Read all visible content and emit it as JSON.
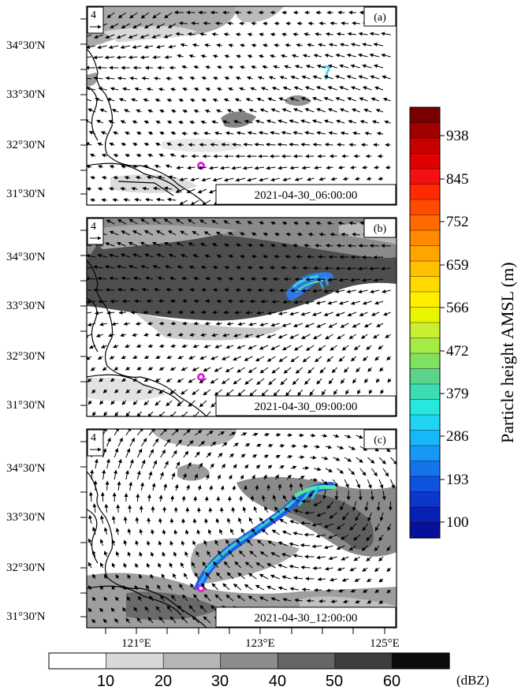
{
  "panels": [
    {
      "letter": "(a)",
      "timestamp": "2021-04-30_06:00:00",
      "reference_vector": "4",
      "y_ticks": [
        "34°30'N",
        "33°30'N",
        "32°30'N",
        "31°30'N"
      ]
    },
    {
      "letter": "(b)",
      "timestamp": "2021-04-30_09:00:00",
      "reference_vector": "4",
      "y_ticks": [
        "34°30'N",
        "33°30'N",
        "32°30'N",
        "31°30'N"
      ]
    },
    {
      "letter": "(c)",
      "timestamp": "2021-04-30_12:00:00",
      "reference_vector": "4",
      "y_ticks": [
        "34°30'N",
        "33°30'N",
        "32°30'N",
        "31°30'N"
      ]
    }
  ],
  "x_ticks": [
    "121°E",
    "123°E",
    "125°E"
  ],
  "height_colorbar": {
    "title": "Particle height AMSL (m)",
    "labels": [
      "938",
      "845",
      "752",
      "659",
      "566",
      "472",
      "379",
      "286",
      "193",
      "100"
    ],
    "colors": [
      "#7a0000",
      "#a00000",
      "#c80000",
      "#e00000",
      "#f41010",
      "#ff2a00",
      "#ff4b00",
      "#ff6a00",
      "#ff8a00",
      "#ffa500",
      "#ffc000",
      "#ffda00",
      "#ffee00",
      "#e8f400",
      "#c8f030",
      "#a6ea46",
      "#80e060",
      "#5ad48a",
      "#3cdcb4",
      "#26e8dc",
      "#20d4f2",
      "#18b8f8",
      "#1898f4",
      "#1474ec",
      "#1052e0",
      "#0c36cc",
      "#0820b4",
      "#06109a"
    ]
  },
  "dbz_colorbar": {
    "unit": "(dBZ)",
    "labels": [
      "10",
      "20",
      "30",
      "40",
      "50",
      "60"
    ],
    "colors": [
      "#ffffff",
      "#d8d8d8",
      "#b6b6b6",
      "#8c8c8c",
      "#666666",
      "#3e3e3e",
      "#0c0c0c"
    ]
  }
}
